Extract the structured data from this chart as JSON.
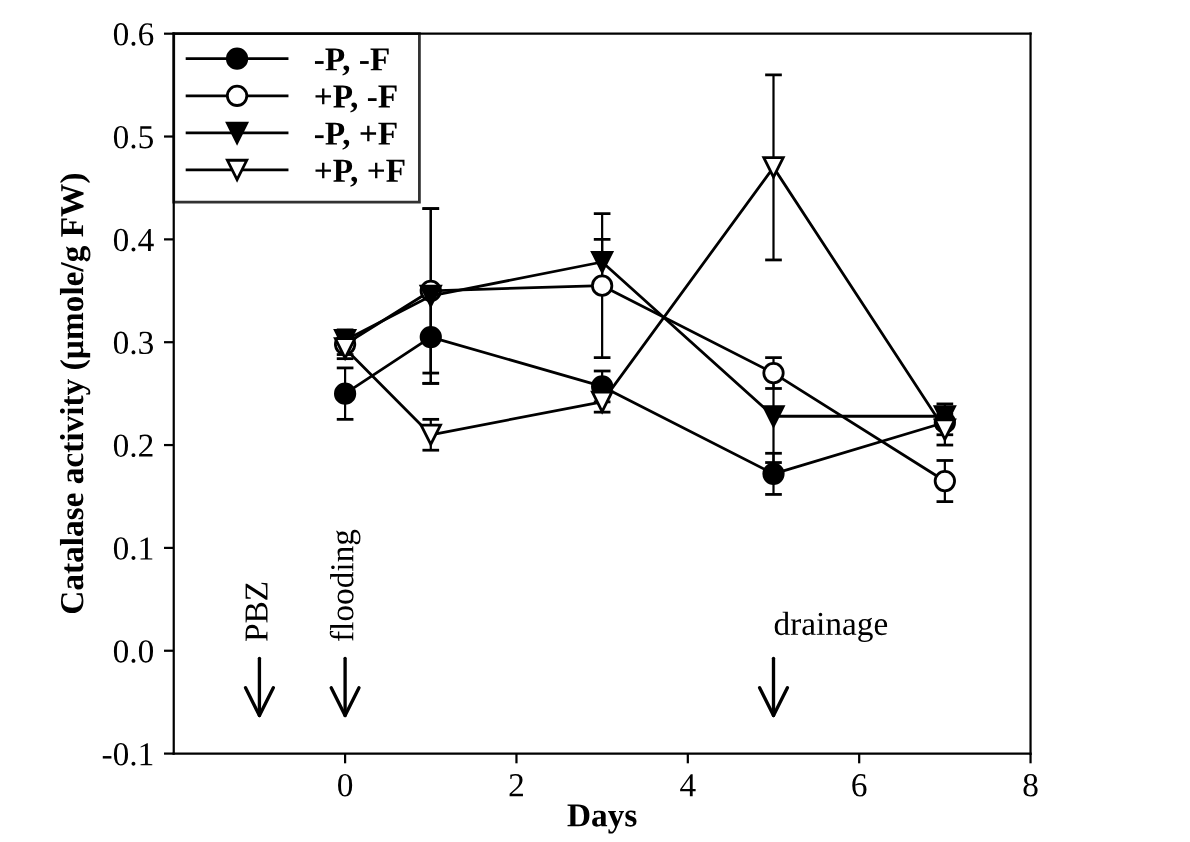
{
  "chart_data": {
    "type": "line",
    "xlabel": "Days",
    "ylabel": "Catalase activity (µmole/g FW)",
    "x": [
      0,
      1,
      3,
      5,
      7
    ],
    "series": [
      {
        "name": "-P, -F",
        "color": "#000000",
        "marker": "circle",
        "values": [
          0.25,
          0.305,
          0.257,
          0.172,
          0.222
        ],
        "errors": [
          0.025,
          0.045,
          0.015,
          0.02,
          0.012
        ]
      },
      {
        "name": "+P, -F",
        "color": "#000000",
        "marker": "circle",
        "values": [
          0.298,
          0.35,
          0.355,
          0.27,
          0.165
        ],
        "errors": [
          0.01,
          0.08,
          0.07,
          0.015,
          0.02
        ]
      },
      {
        "name": "-P, +F",
        "color": "#000000",
        "marker": "triangle",
        "values": [
          0.302,
          0.345,
          0.378,
          0.228,
          0.228
        ],
        "errors": [
          0.01,
          0.085,
          0.022,
          0.045,
          0.012
        ]
      },
      {
        "name": "+P, +F",
        "color": "#000000",
        "marker": "triangle",
        "values": [
          0.294,
          0.21,
          0.242,
          0.47,
          0.215
        ],
        "errors": [
          0.01,
          0.015,
          0.01,
          0.09,
          0.015
        ]
      }
    ],
    "xlim": [
      -2,
      8
    ],
    "xticks": [
      0,
      2,
      4,
      6,
      8
    ],
    "ylim": [
      -0.1,
      0.6
    ],
    "yticks": [
      {
        "value": -0.1,
        "label": "-0.1"
      },
      {
        "value": 0.0,
        "label": "0.0"
      },
      {
        "value": 0.1,
        "label": "0.1"
      },
      {
        "value": 0.2,
        "label": "0.2"
      },
      {
        "value": 0.3,
        "label": "0.3"
      },
      {
        "value": 0.4,
        "label": "0.4"
      },
      {
        "value": 0.5,
        "label": "0.5"
      },
      {
        "value": 0.6,
        "label": "0.6"
      }
    ],
    "annotations": [
      "PBZ",
      "flooding",
      "drainage"
    ],
    "legend": "top left",
    "grid": false,
    "line_style": "solid"
  }
}
